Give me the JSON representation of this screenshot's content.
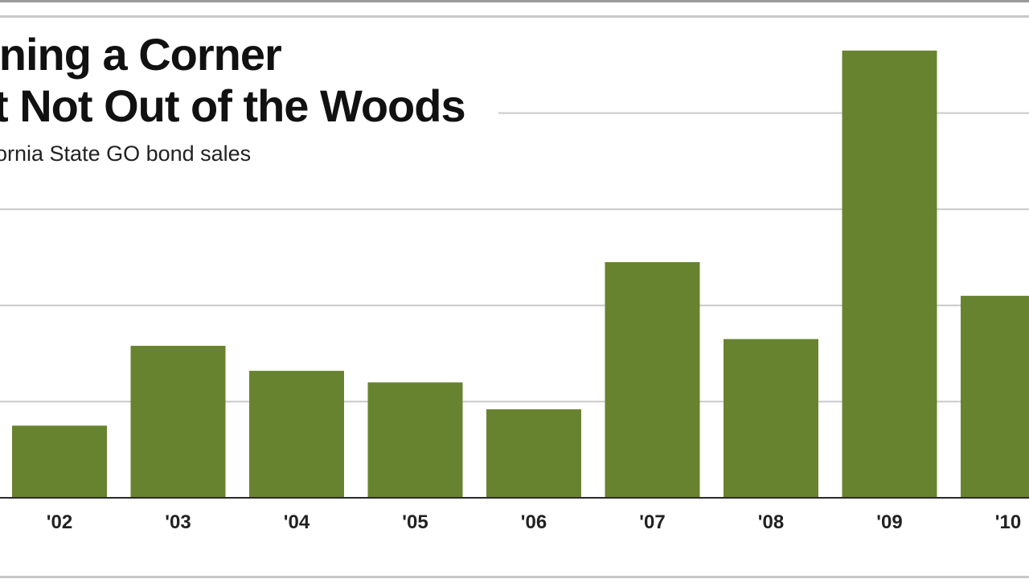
{
  "chart_data": {
    "type": "bar",
    "title_lines": [
      "rning a Corner",
      "t Not Out of the Woods"
    ],
    "subtitle": "ornia State GO bond sales",
    "categories": [
      "'02",
      "'03",
      "'04",
      "'05",
      "'06",
      "'07",
      "'08",
      "'09",
      "'10"
    ],
    "values": [
      0.75,
      1.58,
      1.32,
      1.2,
      0.92,
      2.45,
      1.65,
      4.65,
      2.1
    ],
    "ylim": [
      0,
      5
    ],
    "grid": true,
    "bar_color": "#68832f",
    "xlabel": "",
    "ylabel": ""
  }
}
